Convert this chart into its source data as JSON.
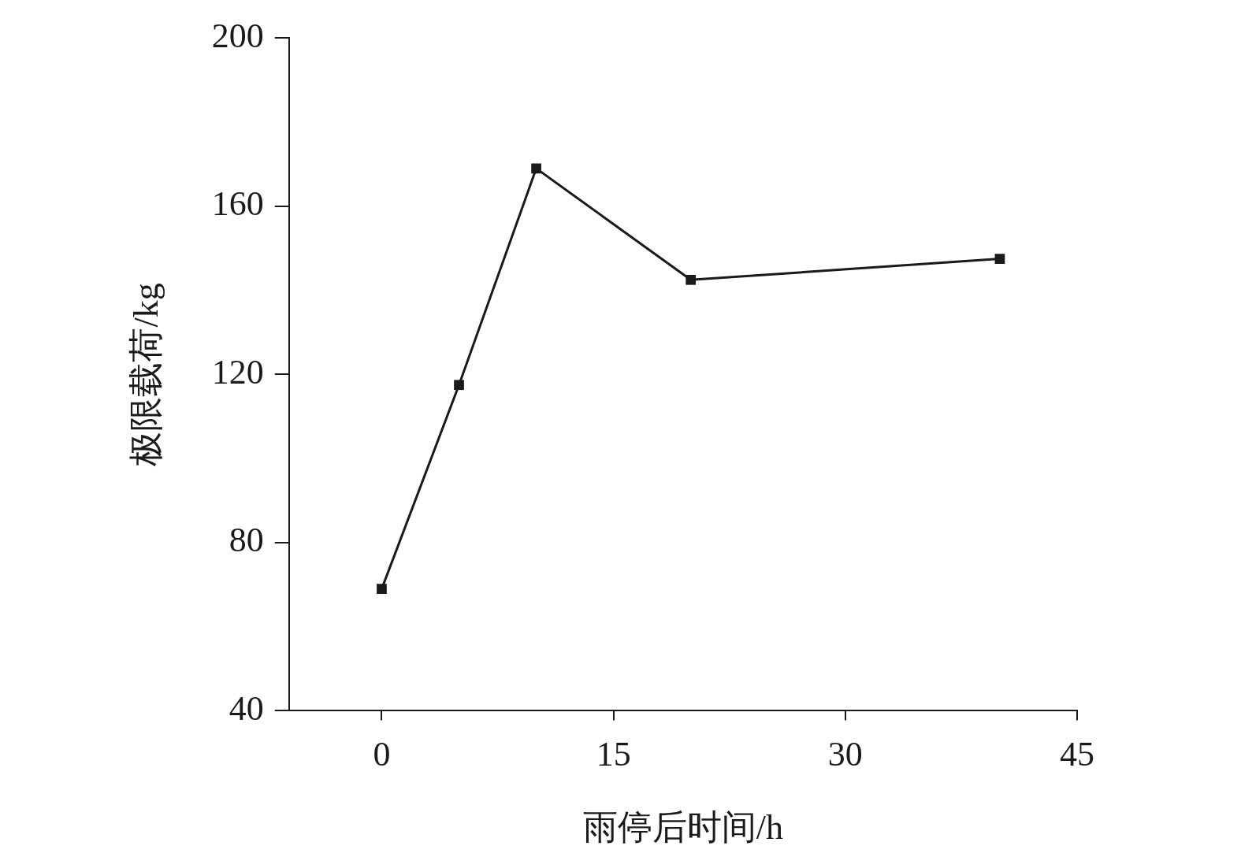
{
  "chart_data": {
    "type": "line",
    "xlabel": "雨停后时间/h",
    "ylabel": "极限载荷/kg",
    "x": [
      0,
      5,
      10,
      20,
      40
    ],
    "series": [
      {
        "color": "#1a1a1a",
        "values": [
          69,
          117.5,
          169,
          142.5,
          147.5
        ]
      }
    ],
    "xlim": [
      -6,
      45
    ],
    "ylim": [
      40,
      200
    ],
    "xticks": [
      0,
      15,
      30,
      45
    ],
    "yticks": [
      40,
      80,
      120,
      160,
      200
    ],
    "grid": false,
    "marker": "square",
    "line_style": "solid"
  }
}
